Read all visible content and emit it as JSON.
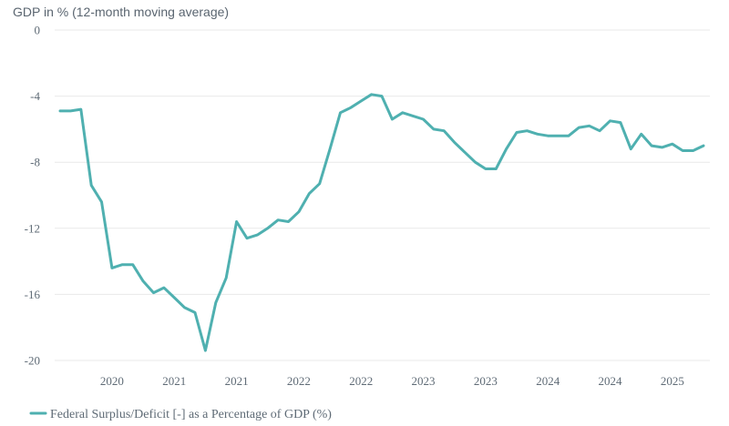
{
  "chart_data": {
    "type": "line",
    "title": "",
    "ylabel": "GDP in % (12-month moving average)",
    "xlabel": "",
    "ylim": [
      -20,
      0
    ],
    "yticks": [
      0,
      -4,
      -8,
      -12,
      -16,
      -20
    ],
    "ytick_labels": [
      "0",
      "-4",
      "-8",
      "-12",
      "-16",
      "-20"
    ],
    "xtick_labels": [
      "2020",
      "2021",
      "2021",
      "2022",
      "2022",
      "2023",
      "2023",
      "2024",
      "2024",
      "2025"
    ],
    "xtick_indices": [
      5,
      11,
      17,
      23,
      29,
      35,
      41,
      47,
      53,
      59
    ],
    "grid": true,
    "legend_position": "bottom-left",
    "series": [
      {
        "name": "Federal Surplus/Deficit [-] as a Percentage of GDP (%)",
        "color": "#4fb0b0",
        "values": [
          -4.9,
          -4.9,
          -4.8,
          -9.4,
          -10.4,
          -14.4,
          -14.2,
          -14.2,
          -15.2,
          -15.9,
          -15.6,
          -16.2,
          -16.8,
          -17.1,
          -19.4,
          -16.5,
          -15.0,
          -11.6,
          -12.6,
          -12.4,
          -12.0,
          -11.5,
          -11.6,
          -11.0,
          -9.9,
          -9.3,
          -7.2,
          -5.0,
          -4.7,
          -4.3,
          -3.9,
          -4.0,
          -5.4,
          -5.0,
          -5.2,
          -5.4,
          -6.0,
          -6.1,
          -6.8,
          -7.4,
          -8.0,
          -8.4,
          -8.4,
          -7.2,
          -6.2,
          -6.1,
          -6.3,
          -6.4,
          -6.4,
          -6.4,
          -5.9,
          -5.8,
          -6.1,
          -5.5,
          -5.6,
          -7.2,
          -6.3,
          -7.0,
          -7.1,
          -6.9,
          -7.3,
          -7.3,
          -7.0
        ]
      }
    ]
  }
}
